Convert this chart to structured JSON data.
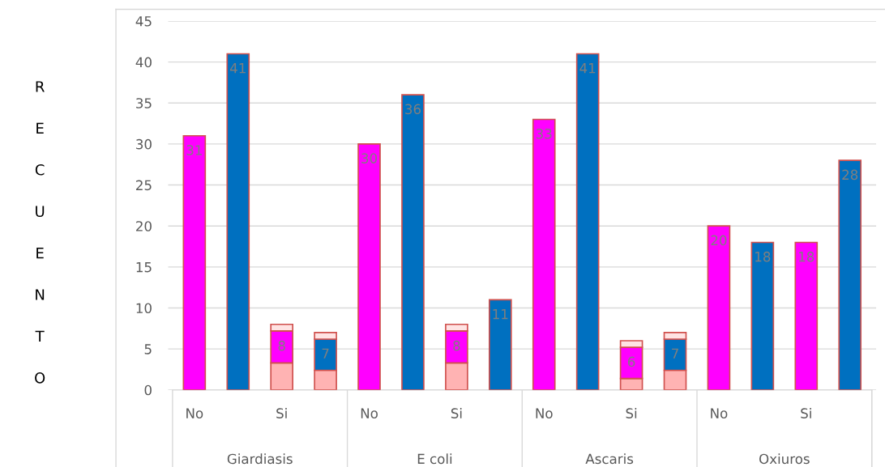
{
  "chart_data": {
    "type": "bar",
    "stacked": true,
    "ylabel": "RECUENTO",
    "categories": [
      "No",
      null,
      "Si",
      null,
      "No",
      null,
      "Si",
      null,
      "No",
      null,
      "Si",
      null,
      "No",
      null,
      "Si",
      null
    ],
    "annotations": [
      "Giardiasis",
      "E coli",
      "Ascaris",
      "Oxiuros"
    ],
    "series": [
      {
        "color": "#ffb3b3",
        "values": [
          null,
          null,
          3.3,
          2.4,
          null,
          null,
          3.3,
          null,
          null,
          null,
          1.4,
          2.4,
          null,
          null,
          null,
          null
        ]
      },
      {
        "colors": [
          "#ff00ff",
          "#0070c0",
          "#ff00ff",
          "#0070c0",
          "#ff00ff",
          "#0070c0",
          "#ff00ff",
          "#0070c0",
          "#ff00ff",
          "#0070c0",
          "#ff00ff",
          "#0070c0",
          "#ff00ff",
          "#0070c0",
          "#ff00ff",
          "#0070c0"
        ],
        "values": [
          31,
          41,
          3.9,
          3.8,
          30,
          36,
          3.9,
          11,
          33,
          41,
          3.8,
          3.8,
          20,
          18,
          18,
          28
        ]
      },
      {
        "color": "#ffe3e3",
        "values": [
          null,
          null,
          0.8,
          0.8,
          null,
          null,
          0.8,
          null,
          null,
          null,
          0.8,
          0.8,
          null,
          null,
          null,
          null
        ]
      }
    ],
    "totals": [
      "31",
      "41",
      "8",
      "7",
      "30",
      "36",
      "8",
      "11",
      "33",
      "41",
      "6",
      "7",
      "20",
      "18",
      "18",
      "28"
    ],
    "ylim": [
      0,
      45
    ],
    "yticks": [
      0,
      5,
      10,
      15,
      20,
      25,
      30,
      35,
      40,
      45
    ],
    "grid": "y"
  }
}
